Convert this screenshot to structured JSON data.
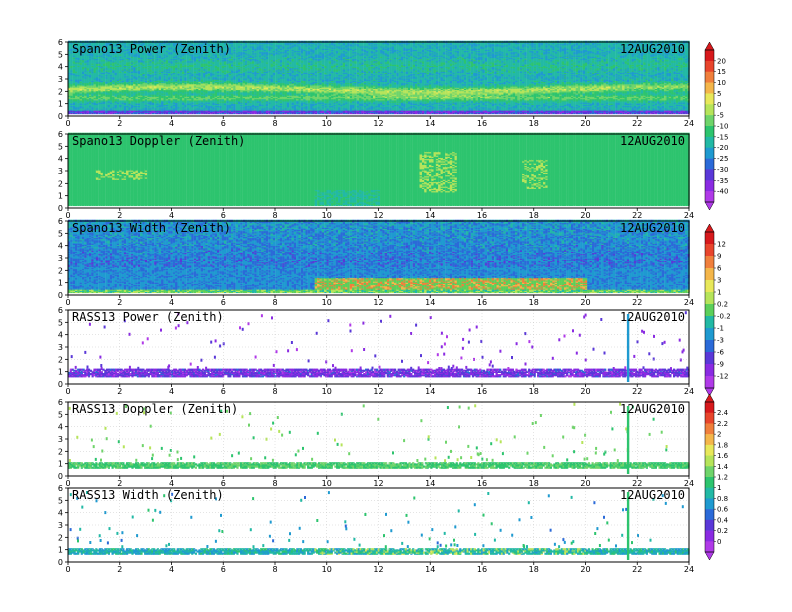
{
  "chart_data": [
    {
      "type": "heatmap",
      "title": "Spano13 Power (Zenith)",
      "date": "12AUG2010",
      "xlim": [
        0,
        24
      ],
      "ylim": [
        0,
        6
      ],
      "xticks": [
        0,
        2,
        4,
        6,
        8,
        10,
        12,
        14,
        16,
        18,
        20,
        22,
        24
      ],
      "yticks": [
        0,
        1,
        2,
        3,
        4,
        5,
        6
      ],
      "pattern": "spano_power",
      "colorbar": "power"
    },
    {
      "type": "heatmap",
      "title": "Spano13 Doppler (Zenith)",
      "date": "12AUG2010",
      "xlim": [
        0,
        24
      ],
      "ylim": [
        0,
        6
      ],
      "xticks": [
        0,
        2,
        4,
        6,
        8,
        10,
        12,
        14,
        16,
        18,
        20,
        22,
        24
      ],
      "yticks": [
        0,
        1,
        2,
        3,
        4,
        5,
        6
      ],
      "pattern": "spano_doppler",
      "colorbar": "power"
    },
    {
      "type": "heatmap",
      "title": "Spano13 Width (Zenith)",
      "date": "12AUG2010",
      "xlim": [
        0,
        24
      ],
      "ylim": [
        0,
        6
      ],
      "xticks": [
        0,
        2,
        4,
        6,
        8,
        10,
        12,
        14,
        16,
        18,
        20,
        22,
        24
      ],
      "yticks": [
        0,
        1,
        2,
        3,
        4,
        5,
        6
      ],
      "pattern": "spano_width",
      "colorbar": "doppler"
    },
    {
      "type": "heatmap",
      "title": "RASS13 Power (Zenith)",
      "date": "12AUG2010",
      "xlim": [
        0,
        24
      ],
      "ylim": [
        0,
        6
      ],
      "xticks": [
        0,
        2,
        4,
        6,
        8,
        10,
        12,
        14,
        16,
        18,
        20,
        22,
        24
      ],
      "yticks": [
        0,
        1,
        2,
        3,
        4,
        5,
        6
      ],
      "pattern": "rass_power",
      "colorbar": "doppler"
    },
    {
      "type": "heatmap",
      "title": "RASS13 Doppler (Zenith)",
      "date": "12AUG2010",
      "xlim": [
        0,
        24
      ],
      "ylim": [
        0,
        6
      ],
      "xticks": [
        0,
        2,
        4,
        6,
        8,
        10,
        12,
        14,
        16,
        18,
        20,
        22,
        24
      ],
      "yticks": [
        0,
        1,
        2,
        3,
        4,
        5,
        6
      ],
      "pattern": "rass_doppler",
      "colorbar": "width"
    },
    {
      "type": "heatmap",
      "title": "RASS13 Width (Zenith)",
      "date": "12AUG2010",
      "xlim": [
        0,
        24
      ],
      "ylim": [
        0,
        6
      ],
      "xticks": [
        0,
        2,
        4,
        6,
        8,
        10,
        12,
        14,
        16,
        18,
        20,
        22,
        24
      ],
      "yticks": [
        0,
        1,
        2,
        3,
        4,
        5,
        6
      ],
      "pattern": "rass_width",
      "colorbar": "width"
    }
  ],
  "colorbars": {
    "power": {
      "labels": [
        "20",
        "15",
        "10",
        "5",
        "0",
        "-5",
        "-10",
        "-15",
        "-20",
        "-25",
        "-30",
        "-35",
        "-40"
      ],
      "colors": [
        "#d7191c",
        "#e8452c",
        "#f07f3c",
        "#f4b64a",
        "#e8e85a",
        "#b6e45a",
        "#6fd46a",
        "#2dc46e",
        "#22b9a5",
        "#1f9ad0",
        "#2b6ad8",
        "#5a38d8",
        "#8a2be2",
        "#b03ae8"
      ]
    },
    "doppler": {
      "labels": [
        "12",
        "9",
        "6",
        "3",
        "1",
        "0.2",
        "-0.2",
        "-1",
        "-3",
        "-6",
        "-9",
        "-12"
      ],
      "colors": [
        "#d7191c",
        "#e8452c",
        "#f07f3c",
        "#f4b64a",
        "#e8e85a",
        "#b6e45a",
        "#5ccf5a",
        "#22b9a5",
        "#1f9ad0",
        "#2b6ad8",
        "#5a38d8",
        "#8a2be2",
        "#b03ae8"
      ]
    },
    "width": {
      "labels": [
        "2.4",
        "2.2",
        "2",
        "1.8",
        "1.6",
        "1.4",
        "1.2",
        "1",
        "0.8",
        "0.6",
        "0.4",
        "0.2",
        "0"
      ],
      "colors": [
        "#d7191c",
        "#e8452c",
        "#f07f3c",
        "#f4b64a",
        "#e8e85a",
        "#b6e45a",
        "#6fd46a",
        "#2dc46e",
        "#22b9a5",
        "#1f9ad0",
        "#2b6ad8",
        "#5a38d8",
        "#8a2be2",
        "#b03ae8"
      ]
    }
  }
}
